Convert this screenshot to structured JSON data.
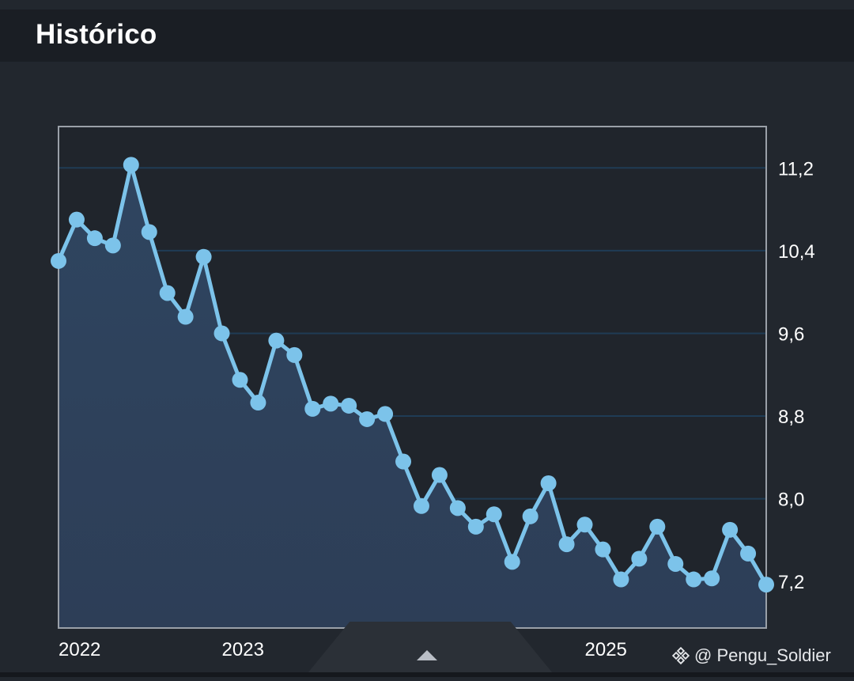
{
  "header": {
    "title": "Histórico"
  },
  "colors": {
    "background": "#22272e",
    "header_bg": "#1a1e24",
    "line": "#7cc3ea",
    "area_top": "#2f4560",
    "area_bottom": "#2d3e57",
    "grid": "#1f3c55",
    "frame": "#9aa0a8"
  },
  "chart_data": {
    "type": "area",
    "title": "",
    "xlabel": "",
    "ylabel": "",
    "ylim": [
      6.75,
      11.6
    ],
    "y_ticks": [
      "11,2",
      "10,4",
      "9,6",
      "8,8",
      "8,0",
      "7,2"
    ],
    "y_tick_values": [
      11.2,
      10.4,
      9.6,
      8.8,
      8.0,
      7.2
    ],
    "x_ticks": [
      "2022",
      "2023",
      "2025"
    ],
    "x_tick_index": [
      0,
      9,
      29
    ],
    "x_range_points": [
      0,
      39
    ],
    "grid": true,
    "legend": "none",
    "series": [
      {
        "values": [
          10.3,
          10.7,
          10.52,
          10.45,
          11.23,
          10.58,
          9.99,
          9.76,
          10.34,
          9.6,
          9.15,
          8.93,
          9.53,
          9.39,
          8.87,
          8.92,
          8.9,
          8.77,
          8.82,
          8.36,
          7.93,
          8.23,
          7.91,
          7.73,
          7.85,
          7.39,
          7.83,
          8.15,
          7.56,
          7.75,
          7.51,
          7.22,
          7.42,
          7.73,
          7.37,
          7.22,
          7.23,
          7.7,
          7.47,
          7.17
        ]
      }
    ]
  },
  "tab_handle": {
    "icon": "chevron-up-icon"
  },
  "watermark": {
    "icon": "binance-logo-icon",
    "text": "@ Pengu_Soldier"
  }
}
